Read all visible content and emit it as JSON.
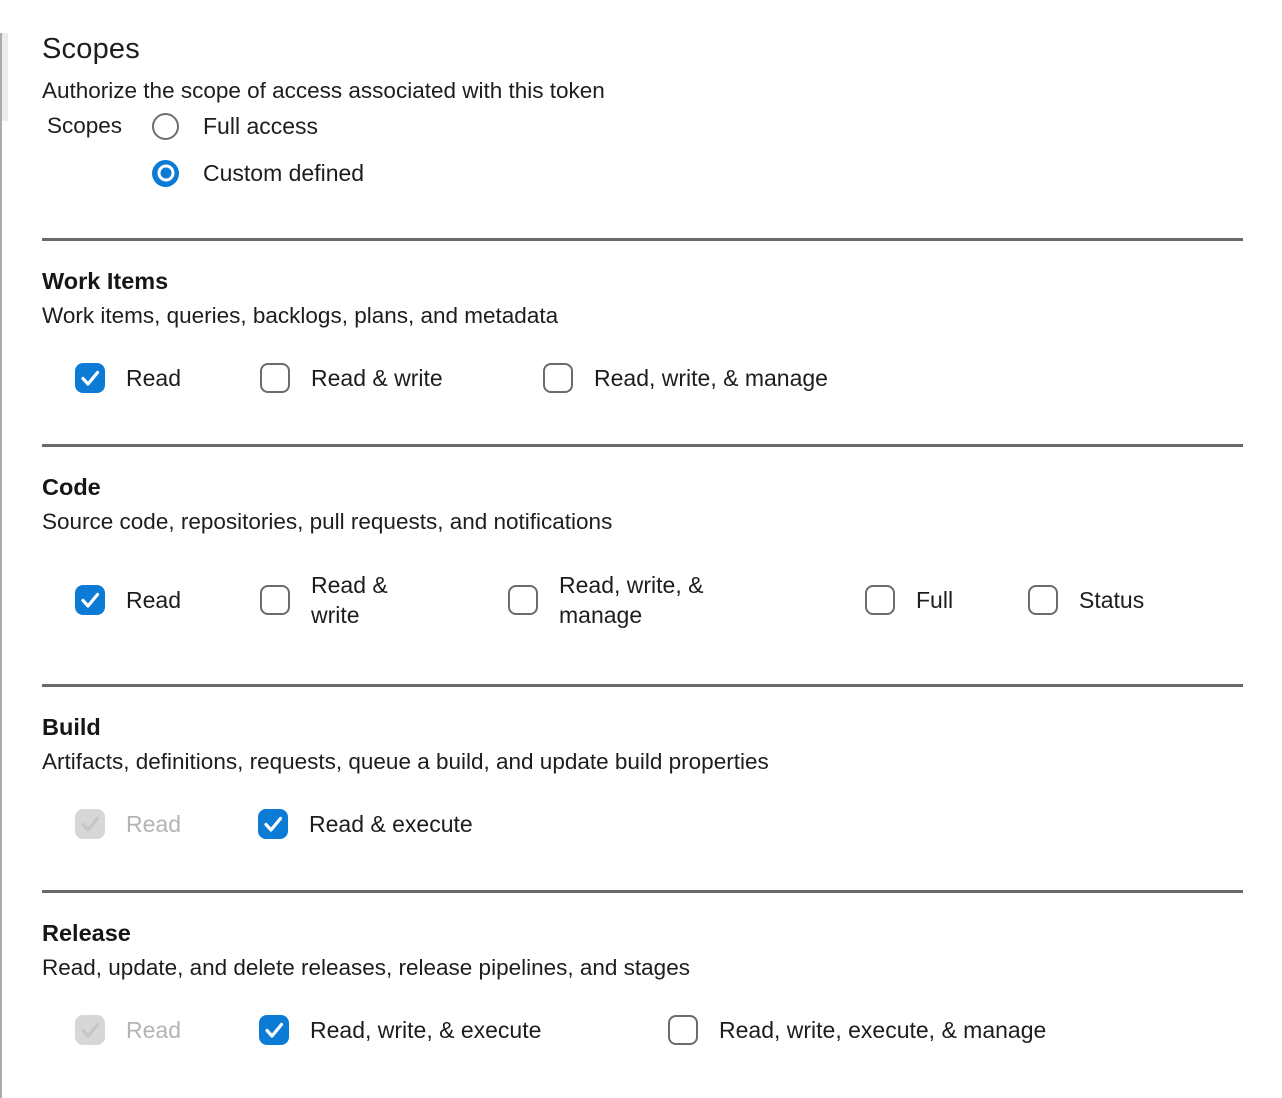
{
  "page": {
    "title": "Scopes",
    "subtitle": "Authorize the scope of access associated with this token",
    "scopes_field_label": "Scopes",
    "radio_options": [
      {
        "label": "Full access",
        "selected": false
      },
      {
        "label": "Custom defined",
        "selected": true
      }
    ],
    "sections": [
      {
        "title": "Work Items",
        "description": "Work items, queries, backlogs, plans, and metadata",
        "options": [
          {
            "label": "Read",
            "checked": true,
            "disabled": false
          },
          {
            "label": "Read & write",
            "checked": false,
            "disabled": false
          },
          {
            "label": "Read, write, & manage",
            "checked": false,
            "disabled": false
          }
        ]
      },
      {
        "title": "Code",
        "description": "Source code, repositories, pull requests, and notifications",
        "options": [
          {
            "label": "Read",
            "checked": true,
            "disabled": false
          },
          {
            "label": "Read & write",
            "checked": false,
            "disabled": false
          },
          {
            "label": "Read, write, & manage",
            "checked": false,
            "disabled": false
          },
          {
            "label": "Full",
            "checked": false,
            "disabled": false
          },
          {
            "label": "Status",
            "checked": false,
            "disabled": false
          }
        ]
      },
      {
        "title": "Build",
        "description": "Artifacts, definitions, requests, queue a build, and update build properties",
        "options": [
          {
            "label": "Read",
            "checked": true,
            "disabled": true
          },
          {
            "label": "Read & execute",
            "checked": true,
            "disabled": false
          }
        ]
      },
      {
        "title": "Release",
        "description": "Read, update, and delete releases, release pipelines, and stages",
        "options": [
          {
            "label": "Read",
            "checked": true,
            "disabled": true
          },
          {
            "label": "Read, write, & execute",
            "checked": true,
            "disabled": false
          },
          {
            "label": "Read, write, execute, & manage",
            "checked": false,
            "disabled": false
          }
        ]
      }
    ],
    "colors": {
      "accent": "#0c7bd6",
      "divider": "#696969",
      "text": "#1d1d1d",
      "disabled_fill": "#d7d7d7",
      "disabled_check": "#c6c6c6",
      "disabled_text": "#b4b4b4"
    }
  }
}
